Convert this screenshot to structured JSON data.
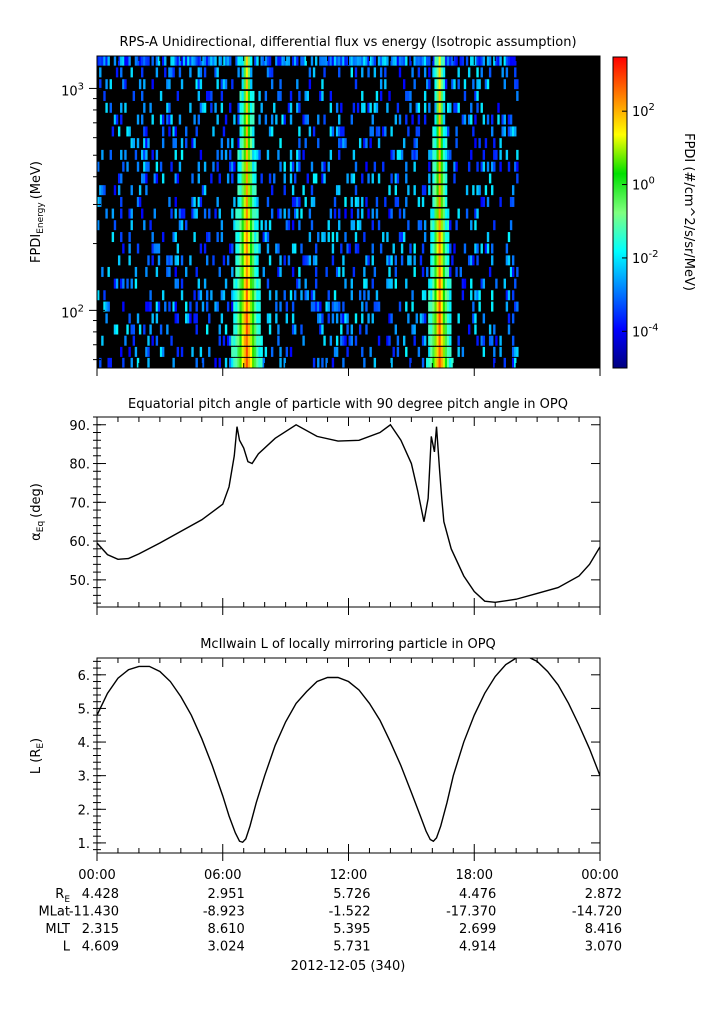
{
  "chart_data": [
    {
      "type": "heatmap",
      "title": "RPS-A Unidirectional, differential flux vs energy (Isotropic assumption)",
      "ylabel_main": "FPDI",
      "ylabel_sub": "Energy",
      "ylabel_unit": "(MeV)",
      "yscale": "log",
      "ylim": [
        55,
        1400
      ],
      "y_ticks": [
        {
          "value": 100,
          "base": "10",
          "exp": "2"
        },
        {
          "value": 1000,
          "base": "10",
          "exp": "3"
        }
      ],
      "energy_channels_MeV": [
        58,
        65,
        73,
        82,
        92,
        104,
        117,
        132,
        149,
        168,
        190,
        214,
        242,
        273,
        308,
        348,
        393,
        444,
        502,
        567,
        640,
        724,
        818,
        925,
        1045,
        1181,
        1334
      ],
      "x_range_hours": [
        0,
        24
      ],
      "data_end_hour": 20.1,
      "high_flux_intervals_hours": [
        [
          6.6,
          7.7
        ],
        [
          15.9,
          16.8
        ]
      ],
      "colorbar": {
        "label": "FPDI (#/cm^2/s/sr/MeV)",
        "scale": "log",
        "range": [
          1e-05,
          3000
        ],
        "ticks": [
          {
            "value": 0.0001,
            "base": "10",
            "exp": "-4"
          },
          {
            "value": 0.01,
            "base": "10",
            "exp": "-2"
          },
          {
            "value": 1,
            "base": "10",
            "exp": "0"
          },
          {
            "value": 100,
            "base": "10",
            "exp": "2"
          }
        ],
        "colors": [
          "#00007f",
          "#0000ff",
          "#007fff",
          "#00ffff",
          "#7fff7f",
          "#00e000",
          "#ffff00",
          "#ff7f00",
          "#ff0000"
        ]
      }
    },
    {
      "type": "line",
      "title": "Equatorial pitch angle of particle with 90 degree pitch angle in OPQ",
      "ylabel_main": "α",
      "ylabel_sub": "Eq",
      "ylabel_unit": "(deg)",
      "ylim": [
        43,
        92
      ],
      "y_ticks": [
        "50.",
        "60.",
        "70.",
        "80.",
        "90."
      ],
      "x_hours": [
        0,
        0.5,
        1,
        1.5,
        2,
        3,
        4,
        5,
        6,
        6.3,
        6.55,
        6.68,
        6.8,
        7.0,
        7.2,
        7.4,
        7.7,
        8.5,
        9.5,
        10.5,
        11.5,
        12.5,
        13.5,
        14.0,
        14.5,
        15.0,
        15.3,
        15.6,
        15.8,
        15.95,
        16.1,
        16.2,
        16.35,
        16.45,
        16.55,
        16.9,
        17.5,
        18,
        18.5,
        19,
        20,
        21,
        22,
        23,
        23.5,
        24
      ],
      "y_deg": [
        59.5,
        56.5,
        55.3,
        55.5,
        56.7,
        59.5,
        62.5,
        65.5,
        69.5,
        74,
        82,
        89.5,
        86,
        84,
        80.5,
        80,
        82.5,
        86.5,
        90,
        87,
        85.8,
        86,
        88,
        90,
        86,
        80,
        73,
        65,
        71,
        87,
        83,
        89.5,
        78,
        71,
        65,
        58,
        51,
        47,
        44.5,
        44.2,
        45,
        46.5,
        48,
        51,
        54,
        58.5
      ],
      "color": "#000000"
    },
    {
      "type": "line",
      "title": "McIlwain L of locally mirroring particle in OPQ",
      "ylabel_main": "L (R",
      "ylabel_sub": "E",
      "ylabel_unit": ")",
      "ylim": [
        0.7,
        6.5
      ],
      "y_ticks": [
        "1.",
        "2.",
        "3.",
        "4.",
        "5.",
        "6."
      ],
      "x_hours": [
        0,
        0.5,
        1,
        1.5,
        2,
        2.5,
        3,
        3.5,
        4,
        4.5,
        5,
        5.5,
        6,
        6.3,
        6.6,
        6.8,
        6.95,
        7.1,
        7.3,
        7.6,
        8,
        8.5,
        9,
        9.5,
        10,
        10.5,
        11,
        11.5,
        12,
        12.5,
        13,
        13.5,
        14,
        14.5,
        15,
        15.4,
        15.7,
        15.9,
        16.05,
        16.2,
        16.4,
        16.7,
        17,
        17.5,
        18,
        18.5,
        19,
        19.5,
        20,
        20.3,
        20.6,
        21,
        21.5,
        22,
        22.5,
        23,
        23.5,
        24
      ],
      "y_L": [
        4.8,
        5.45,
        5.9,
        6.15,
        6.25,
        6.25,
        6.1,
        5.8,
        5.35,
        4.8,
        4.1,
        3.3,
        2.4,
        1.8,
        1.3,
        1.05,
        1.02,
        1.12,
        1.5,
        2.2,
        3.0,
        3.9,
        4.6,
        5.15,
        5.5,
        5.8,
        5.92,
        5.92,
        5.8,
        5.55,
        5.15,
        4.65,
        4.0,
        3.3,
        2.5,
        1.85,
        1.35,
        1.1,
        1.05,
        1.15,
        1.5,
        2.2,
        3.0,
        4.0,
        4.8,
        5.45,
        5.95,
        6.3,
        6.5,
        6.55,
        6.52,
        6.4,
        6.1,
        5.7,
        5.15,
        4.5,
        3.8,
        3.0
      ],
      "color": "#000000"
    }
  ],
  "x_axis": {
    "tick_labels": [
      "00:00",
      "06:00",
      "12:00",
      "18:00",
      "00:00"
    ],
    "tick_hours": [
      0,
      6,
      12,
      18,
      24
    ]
  },
  "ephemeris": {
    "rows": [
      {
        "label_main": "R",
        "label_sub": "E",
        "values": [
          "4.428",
          "2.951",
          "5.726",
          "4.476",
          "2.872"
        ]
      },
      {
        "label_main": "MLat",
        "label_sub": "",
        "values": [
          "-11.430",
          "-8.923",
          "-1.522",
          "-17.370",
          "-14.720"
        ]
      },
      {
        "label_main": "MLT",
        "label_sub": "",
        "values": [
          "2.315",
          "8.610",
          "5.395",
          "2.699",
          "8.416"
        ]
      },
      {
        "label_main": "L",
        "label_sub": "",
        "values": [
          "4.609",
          "3.024",
          "5.731",
          "4.914",
          "3.070"
        ]
      }
    ],
    "date_label": "2012-12-05 (340)"
  }
}
